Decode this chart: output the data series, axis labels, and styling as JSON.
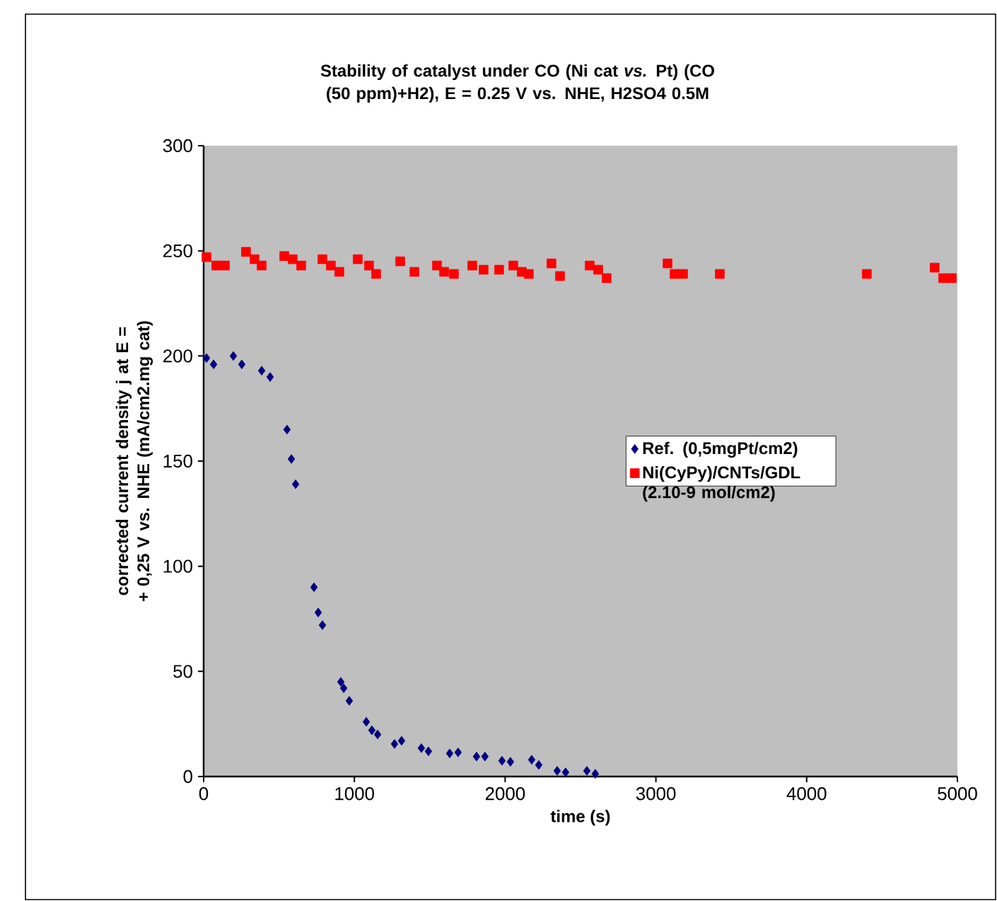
{
  "chart_data": {
    "type": "scatter",
    "title": "Stability of catalyst under CO (Ni cat *vs.* Pt) (CO (50 ppm)+H2), E = 0.25 V vs. NHE, H2SO4 0.5M",
    "xlabel": "time (s)",
    "ylabel": "corrected current density j at E = + 0,25 V vs. NHE (mA/cm2.mg cat)",
    "xlim": [
      0,
      5000
    ],
    "xticks": [
      0,
      1000,
      2000,
      3000,
      4000,
      5000
    ],
    "ylim": [
      0,
      300
    ],
    "yticks": [
      0,
      50,
      100,
      150,
      200,
      250,
      300
    ],
    "grid": false,
    "legend": "right",
    "series": [
      {
        "name": "Ref. (0,5mgPt/cm2)",
        "color": "#000080",
        "marker": "diamond",
        "x": [
          19,
          66,
          197,
          253,
          385,
          441,
          553,
          582,
          610,
          732,
          760,
          788,
          910,
          929,
          966,
          1079,
          1116,
          1154,
          1266,
          1313,
          1444,
          1491,
          1632,
          1688,
          1810,
          1866,
          1979,
          2035,
          2176,
          2223,
          2345,
          2401,
          2542,
          2598
        ],
        "values": [
          199,
          196,
          200,
          196,
          193,
          190,
          165,
          151,
          139,
          90,
          78,
          72,
          45,
          42,
          36,
          26,
          22,
          20,
          15.5,
          17,
          13.5,
          12,
          11,
          11.5,
          9.5,
          9.5,
          7.5,
          7,
          8,
          5.5,
          2.7,
          2,
          2.7,
          1.3
        ]
      },
      {
        "name": "Ni(CyPy)/CNTs/GDL (2.10-9 mol/cm2)",
        "color": "#ff0000",
        "marker": "square",
        "x": [
          19,
          84,
          141,
          281,
          338,
          385,
          535,
          591,
          647,
          788,
          844,
          900,
          1022,
          1097,
          1144,
          1304,
          1398,
          1548,
          1595,
          1660,
          1782,
          1857,
          1960,
          2054,
          2110,
          2157,
          2307,
          2364,
          2561,
          2617,
          2673,
          3077,
          3124,
          3180,
          3424,
          4399,
          4849,
          4906,
          4962
        ],
        "values": [
          247,
          243,
          243,
          249.5,
          246,
          243,
          247.5,
          246,
          243,
          246,
          243,
          240,
          246,
          243,
          239,
          245,
          240,
          243,
          240,
          239,
          243,
          241,
          241,
          243,
          240,
          239,
          244,
          238,
          243,
          241,
          237,
          244,
          239,
          239,
          239,
          239,
          242,
          237,
          237
        ]
      }
    ]
  }
}
